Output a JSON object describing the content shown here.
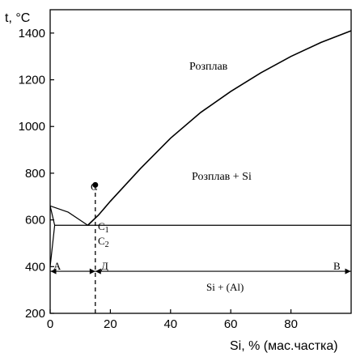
{
  "chart_data": {
    "type": "line",
    "title": "",
    "ylabel": "t, °C",
    "xlabel": "Si, % (мас.частка)",
    "xlim": [
      0,
      100
    ],
    "ylim": [
      200,
      1500
    ],
    "x_ticks": [
      0,
      20,
      40,
      60,
      80
    ],
    "y_ticks": [
      200,
      400,
      600,
      800,
      1000,
      1200,
      1400
    ],
    "grid": false,
    "series": [
      {
        "values": [
          [
            0,
            660
          ],
          [
            6,
            633
          ],
          [
            12.5,
            577
          ]
        ]
      },
      {
        "values": [
          [
            12.5,
            577
          ],
          [
            16,
            620
          ],
          [
            20,
            680
          ],
          [
            30,
            820
          ],
          [
            40,
            950
          ],
          [
            50,
            1060
          ],
          [
            60,
            1150
          ],
          [
            70,
            1230
          ],
          [
            80,
            1300
          ],
          [
            90,
            1360
          ],
          [
            100,
            1410
          ]
        ]
      },
      {
        "values": [
          [
            1.5,
            577
          ],
          [
            100,
            577
          ]
        ]
      },
      {
        "values": [
          [
            0,
            660
          ],
          [
            1.5,
            577
          ],
          [
            0,
            400
          ]
        ]
      }
    ],
    "vertical_dashed_line": {
      "x": 15,
      "y_from": 200,
      "y_to": 750
    },
    "point_c": {
      "x": 15,
      "y": 750
    },
    "region_labels": {
      "melt": "Розплав",
      "melt_si": "Розплав + Si",
      "solid": "Si + (Al)"
    },
    "point_labels": {
      "c": "C",
      "c1": "C1",
      "c2": "C2",
      "a": "A",
      "d": "Д",
      "b": "B"
    },
    "arrow_line_y": 380
  }
}
